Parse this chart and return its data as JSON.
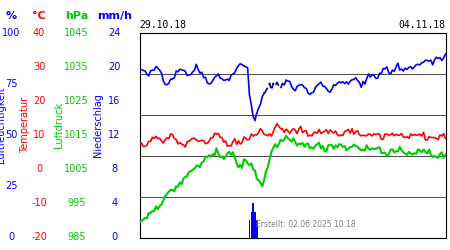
{
  "title_left": "29.10.18",
  "title_right": "04.11.18",
  "footer": "Erstellt: 02.06.2025 10:18",
  "y_labels_left": {
    "Luftfeuchtigkeit": {
      "color": "#0000ff",
      "unit": "%",
      "ticks": [
        0,
        25,
        50,
        75,
        100
      ],
      "values": [
        0,
        25,
        50,
        75,
        100
      ]
    },
    "Temperatur": {
      "color": "#ff0000",
      "unit": "°C",
      "ticks": [
        -20,
        -10,
        0,
        10,
        20,
        30,
        40
      ]
    },
    "Luftdruck": {
      "color": "#00cc00",
      "unit": "hPa",
      "ticks": [
        985,
        995,
        1005,
        1015,
        1025,
        1035,
        1045
      ]
    },
    "Niederschlag": {
      "color": "#0000ff",
      "unit": "mm/h",
      "ticks": [
        0,
        4,
        8,
        12,
        16,
        20,
        24
      ]
    }
  },
  "n_points": 168,
  "background": "#ffffff",
  "grid_color": "#000000",
  "line_blue_color": "#0000ff",
  "line_red_color": "#ff0000",
  "line_green_color": "#00cc00",
  "bar_color": "#0000ff",
  "dashed_line_color": "#0000aa"
}
